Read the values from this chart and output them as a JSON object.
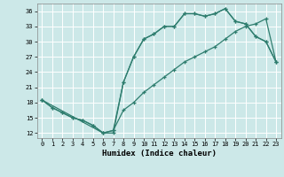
{
  "xlabel": "Humidex (Indice chaleur)",
  "background_color": "#cce8e8",
  "grid_color": "#ffffff",
  "line_color": "#2e7d6e",
  "xlim": [
    -0.5,
    23.5
  ],
  "ylim": [
    11,
    37.5
  ],
  "xticks": [
    0,
    1,
    2,
    3,
    4,
    5,
    6,
    7,
    8,
    9,
    10,
    11,
    12,
    13,
    14,
    15,
    16,
    17,
    18,
    19,
    20,
    21,
    22,
    23
  ],
  "yticks": [
    12,
    15,
    18,
    21,
    24,
    27,
    30,
    33,
    36
  ],
  "line1_x": [
    0,
    1,
    2,
    3,
    4,
    5,
    6,
    7,
    8,
    9,
    10,
    11,
    12,
    13,
    14,
    15,
    16,
    17,
    18,
    19,
    20,
    21,
    22,
    23
  ],
  "line1_y": [
    18.5,
    17.0,
    16.0,
    15.0,
    14.5,
    13.5,
    12.0,
    12.0,
    22.0,
    27.0,
    30.5,
    31.5,
    33.0,
    33.0,
    35.5,
    35.5,
    35.0,
    35.5,
    36.5,
    34.0,
    33.5,
    31.0,
    30.0,
    26.0
  ],
  "line2_x": [
    0,
    1,
    2,
    3,
    4,
    5,
    6,
    7,
    8,
    9,
    10,
    11,
    12,
    13,
    14,
    15,
    16,
    17,
    18,
    19,
    20,
    21,
    22,
    23
  ],
  "line2_y": [
    18.5,
    17.0,
    16.0,
    15.0,
    14.5,
    13.5,
    12.0,
    12.5,
    16.5,
    18.0,
    20.0,
    21.5,
    23.0,
    24.5,
    26.0,
    27.0,
    28.0,
    29.0,
    30.5,
    32.0,
    33.0,
    33.5,
    34.5,
    26.0
  ],
  "line3_x": [
    0,
    6,
    7,
    8,
    9,
    10,
    11,
    12,
    13,
    14,
    15,
    16,
    17,
    18,
    19,
    20,
    21,
    22,
    23
  ],
  "line3_y": [
    18.5,
    12.0,
    12.5,
    22.0,
    27.0,
    30.5,
    31.5,
    33.0,
    33.0,
    35.5,
    35.5,
    35.0,
    35.5,
    36.5,
    34.0,
    33.5,
    31.0,
    30.0,
    26.0
  ]
}
